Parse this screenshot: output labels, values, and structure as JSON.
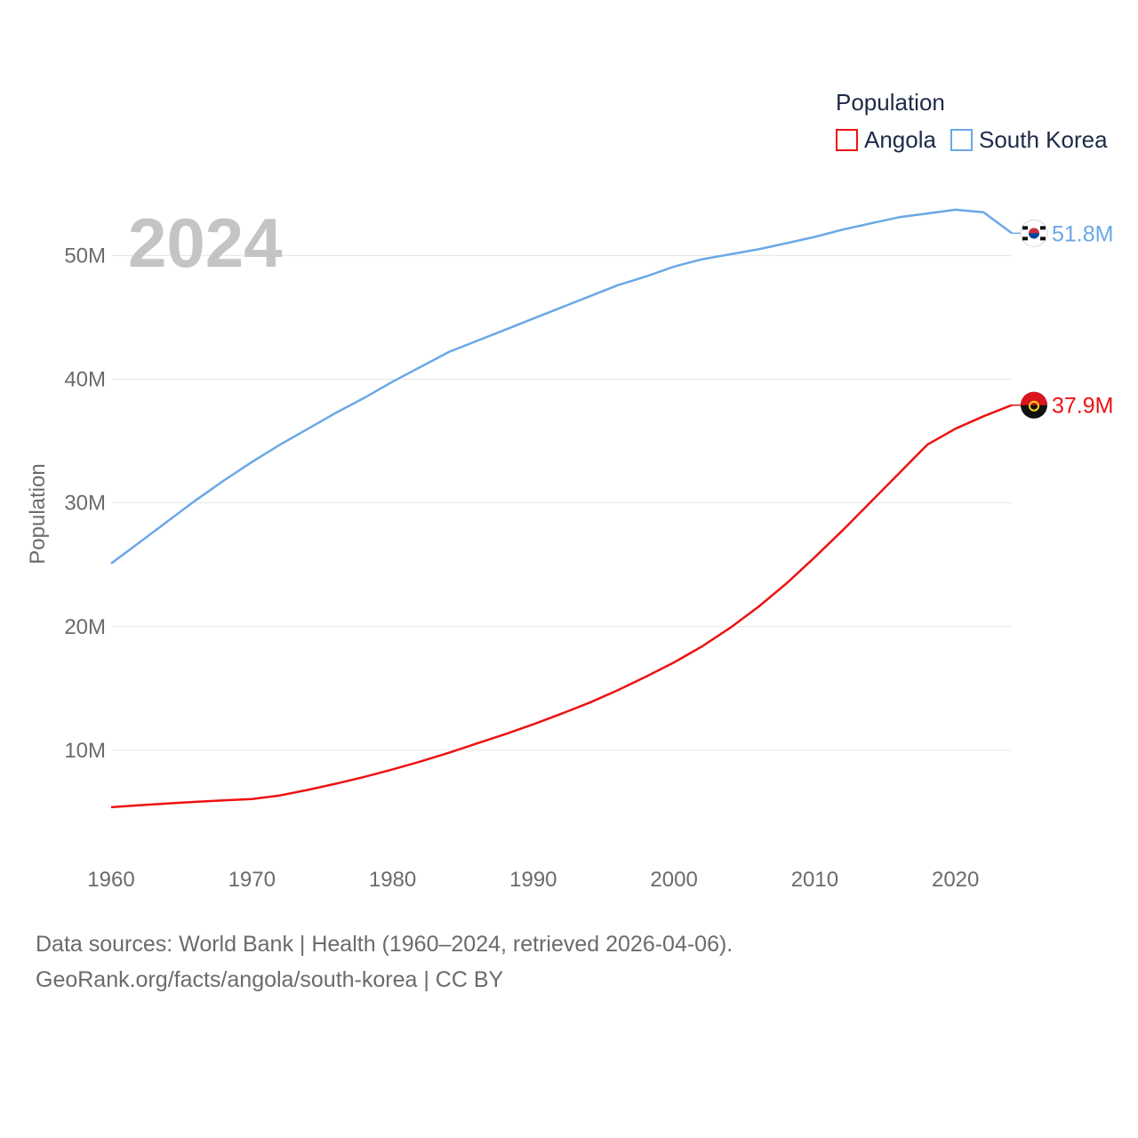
{
  "chart_data": {
    "type": "line",
    "year_label": "2024",
    "ylabel": "Population",
    "xlabel": "",
    "xlim": [
      1960,
      2024
    ],
    "ylim": [
      0,
      57000000
    ],
    "x_ticks": [
      1960,
      1970,
      1980,
      1990,
      2000,
      2010,
      2020
    ],
    "y_ticks": [
      {
        "value": 10000000,
        "label": "10M"
      },
      {
        "value": 20000000,
        "label": "20M"
      },
      {
        "value": 30000000,
        "label": "30M"
      },
      {
        "value": 40000000,
        "label": "40M"
      },
      {
        "value": 50000000,
        "label": "50M"
      }
    ],
    "legend": {
      "title": "Population",
      "position": "top-right"
    },
    "x": [
      1960,
      1962,
      1964,
      1966,
      1968,
      1970,
      1972,
      1974,
      1976,
      1978,
      1980,
      1982,
      1984,
      1986,
      1988,
      1990,
      1992,
      1994,
      1996,
      1998,
      2000,
      2002,
      2004,
      2006,
      2008,
      2010,
      2012,
      2014,
      2016,
      2018,
      2020,
      2022,
      2024
    ],
    "series": [
      {
        "name": "Angola",
        "color": "#ee1111",
        "flag_icon": "angola-flag-icon",
        "end_label": "37.9M",
        "values": [
          5400000,
          5550000,
          5700000,
          5830000,
          5950000,
          6050000,
          6350000,
          6800000,
          7300000,
          7850000,
          8450000,
          9100000,
          9800000,
          10550000,
          11300000,
          12100000,
          12950000,
          13850000,
          14850000,
          15950000,
          17100000,
          18400000,
          19900000,
          21600000,
          23500000,
          25600000,
          27800000,
          30100000,
          32400000,
          34700000,
          36000000,
          37000000,
          37900000
        ]
      },
      {
        "name": "South Korea",
        "color": "#6aa8e6",
        "flag_icon": "south-korea-flag-icon",
        "end_label": "51.8M",
        "values": [
          25100000,
          26800000,
          28500000,
          30200000,
          31800000,
          33300000,
          34700000,
          36000000,
          37300000,
          38500000,
          39800000,
          41000000,
          42200000,
          43100000,
          44000000,
          44900000,
          45800000,
          46700000,
          47600000,
          48300000,
          49100000,
          49700000,
          50100000,
          50500000,
          51000000,
          51500000,
          52100000,
          52600000,
          53100000,
          53400000,
          53700000,
          53500000,
          51800000
        ]
      }
    ]
  },
  "footer": {
    "line1": "Data sources: World Bank | Health (1960–2024, retrieved 2026-04-06).",
    "line2": "GeoRank.org/facts/angola/south-korea | CC BY"
  }
}
